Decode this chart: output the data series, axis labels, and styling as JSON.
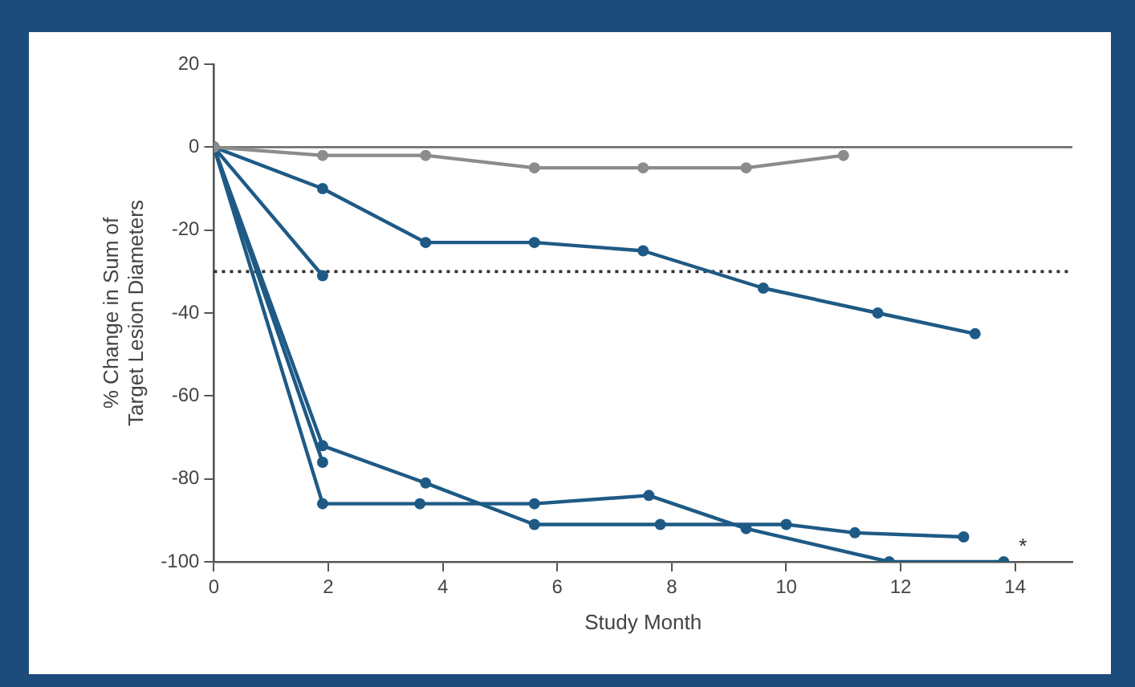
{
  "chart_data": {
    "type": "line",
    "xlabel": "Study Month",
    "ylabel": "% Change in Sum of Target Lesion Diameters",
    "xlim": [
      0,
      15
    ],
    "xticks": [
      0,
      2,
      4,
      6,
      8,
      10,
      12,
      14
    ],
    "ylim": [
      -100,
      20
    ],
    "yticks": [
      -100,
      -80,
      -60,
      -40,
      -20,
      0,
      20
    ],
    "grid": false,
    "legend": false,
    "marker": "circle",
    "line_style": "solid",
    "series": [
      {
        "color": "#8c8c8c",
        "x": [
          0,
          1.9,
          3.7,
          5.6,
          7.5,
          9.3,
          11.0
        ],
        "values": [
          0,
          -2,
          -2,
          -5,
          -5,
          -5,
          -2
        ]
      },
      {
        "color": "#1e5a85",
        "x": [
          0,
          1.9,
          3.7,
          5.6,
          7.5,
          9.6,
          11.6,
          13.3
        ],
        "values": [
          0,
          -10,
          -23,
          -23,
          -25,
          -34,
          -40,
          -45
        ]
      },
      {
        "color": "#1e5a85",
        "x": [
          0,
          1.9
        ],
        "values": [
          0,
          -31
        ]
      },
      {
        "color": "#1e5a85",
        "x": [
          0,
          1.9
        ],
        "values": [
          0,
          -76
        ]
      },
      {
        "color": "#1e5a85",
        "x": [
          0,
          1.9,
          3.7,
          5.6,
          7.8,
          10.0,
          11.2,
          13.1
        ],
        "values": [
          0,
          -72,
          -81,
          -91,
          -91,
          -91,
          -93,
          -94
        ]
      },
      {
        "color": "#1e5a85",
        "x": [
          0,
          1.9,
          3.6,
          5.6,
          7.6,
          9.3,
          11.8,
          13.8
        ],
        "values": [
          0,
          -86,
          -86,
          -86,
          -84,
          -92,
          -100,
          -100
        ]
      }
    ],
    "ref_lines": [
      {
        "axis": "y",
        "value": 0,
        "color": "#707070",
        "line_style": "solid"
      },
      {
        "axis": "y",
        "value": -30,
        "color": "#333333",
        "line_style": "dotted"
      }
    ],
    "annotations": [
      {
        "text": "*",
        "x": 13.8,
        "y": -100
      }
    ]
  }
}
